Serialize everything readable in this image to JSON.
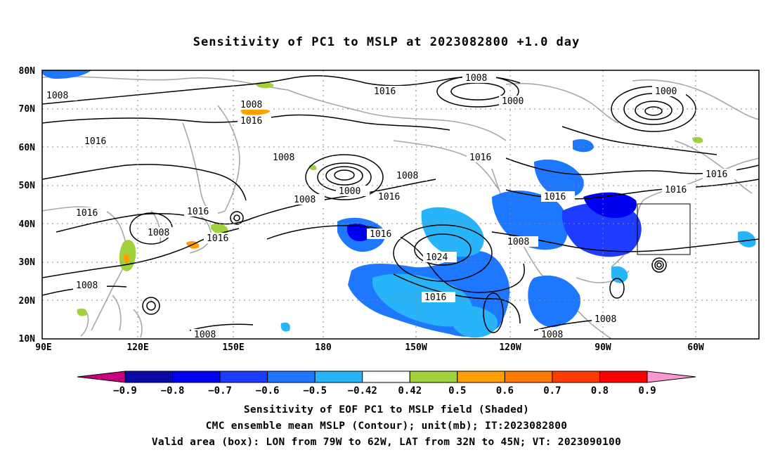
{
  "title": "Sensitivity of PC1 to MSLP at 2023082800 +1.0 day",
  "map": {
    "lat_labels": [
      "80N",
      "70N",
      "60N",
      "50N",
      "40N",
      "30N",
      "20N",
      "10N"
    ],
    "lon_labels": [
      "90E",
      "120E",
      "150E",
      "180",
      "150W",
      "120W",
      "90W",
      "60W"
    ],
    "valid_box": {
      "lon_from": "79W",
      "lon_to": "62W",
      "lat_from": "32N",
      "lat_to": "45N"
    },
    "contour_labels": [
      "1008",
      "1016",
      "1008",
      "1016",
      "1008",
      "1000",
      "1016",
      "1000",
      "1016",
      "1008",
      "1016",
      "1008",
      "1000",
      "1016",
      "1016",
      "1016",
      "1008",
      "1016",
      "1024",
      "1016",
      "1008",
      "1016",
      "1008",
      "1008",
      "1008",
      "1016",
      "1016",
      "1008"
    ],
    "colors": {
      "ocean_bg": "#ffffff",
      "coast": "#a8a8a8",
      "contour": "#000000",
      "grid": "#888888"
    }
  },
  "colorbar": {
    "labels": [
      "−0.9",
      "−0.8",
      "−0.7",
      "−0.6",
      "−0.5",
      "−0.42",
      "0.42",
      "0.5",
      "0.6",
      "0.7",
      "0.8",
      "0.9"
    ],
    "colors": [
      "#c8007f",
      "#0a0aa8",
      "#0000f0",
      "#1e3cff",
      "#1e78ff",
      "#28b4f8",
      "#ffffff",
      "#a0d23c",
      "#ffa000",
      "#ff7800",
      "#ff3c00",
      "#ff0000",
      "#f89ad0"
    ]
  },
  "caption": {
    "line1": "Sensitivity of EOF PC1 to MSLP field (Shaded)",
    "line2": "CMC ensemble mean MSLP (Contour); unit(mb); IT:2023082800",
    "line3": "Valid area (box): LON from 79W to 62W, LAT from 32N to 45N; VT: 2023090100"
  }
}
